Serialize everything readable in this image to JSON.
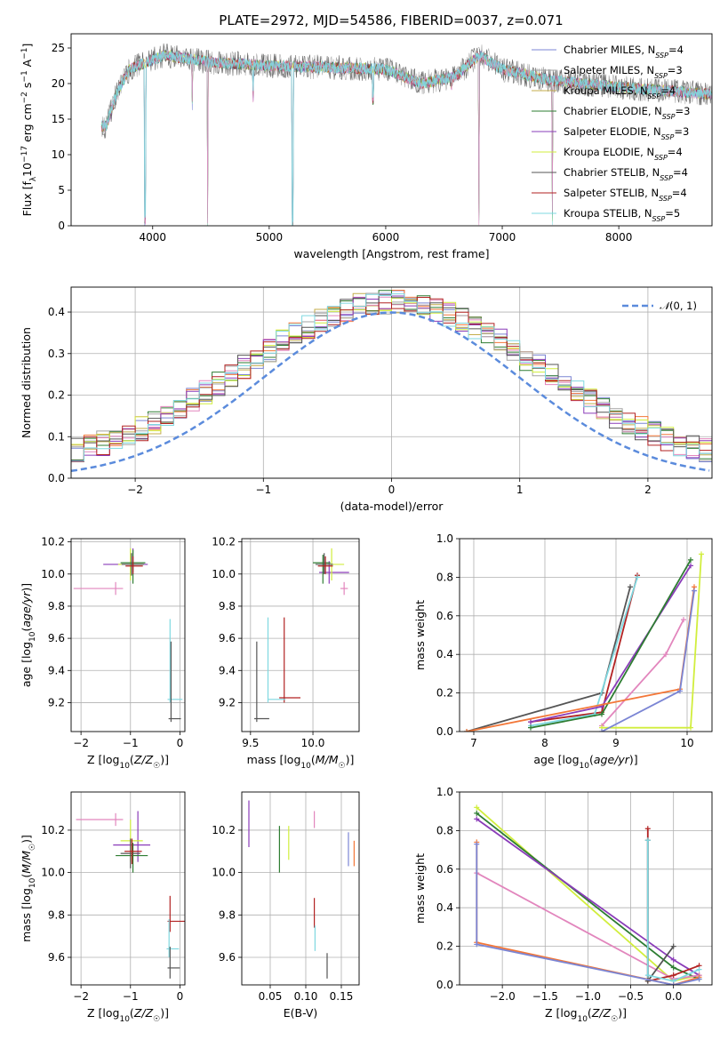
{
  "figure": {
    "title": "PLATE=2972, MJD=54586, FIBERID=0037, z=0.071"
  },
  "colors": {
    "c0": "#7b85d4",
    "c1": "#f37738",
    "c2": "#83c369",
    "c3": "#c4ae4d",
    "c4": "#e286bd",
    "c5": "#a3a3a3",
    "c6": "#8a3cb9",
    "c7": "#d1ee3d",
    "c8": "#555555",
    "c9": "#b22222",
    "c10": "#7fd8e0",
    "c11": "#d98a2e",
    "normal": "#5b8bdc"
  },
  "chart_data": [
    {
      "id": "spectrum",
      "type": "line",
      "xlabel": "wavelength [Angstrom, rest frame]",
      "ylabel": "Flux [f_λ10^-17 erg cm^-2 s^-1 A^-1]",
      "xlim": [
        3300,
        8800
      ],
      "ylim": [
        0,
        27
      ],
      "xticks": [
        4000,
        5000,
        6000,
        7000,
        8000
      ],
      "yticks": [
        0,
        5,
        10,
        15,
        20,
        25
      ],
      "legend": "top-right",
      "legend_entries": [
        {
          "text": "Chabrier MILES, N",
          "sub": "SSP",
          "tail": "=4",
          "color": "#7b85d4"
        },
        {
          "text": "Salpeter MILES, N",
          "sub": "SSP",
          "tail": "=3",
          "color": "#a3a3a3"
        },
        {
          "text": "Kroupa MILES, N",
          "sub": "SSP",
          "tail": "=4",
          "color": "#c4ae4d"
        },
        {
          "text": "Chabrier ELODIE, N",
          "sub": "SSP",
          "tail": "=3",
          "color": "#2e7d32"
        },
        {
          "text": "Salpeter ELODIE, N",
          "sub": "SSP",
          "tail": "=3",
          "color": "#8a3cb9"
        },
        {
          "text": "Kroupa ELODIE, N",
          "sub": "SSP",
          "tail": "=4",
          "color": "#d1ee3d"
        },
        {
          "text": "Chabrier STELIB, N",
          "sub": "SSP",
          "tail": "=4",
          "color": "#555555"
        },
        {
          "text": "Salpeter STELIB, N",
          "sub": "SSP",
          "tail": "=4",
          "color": "#b22222"
        },
        {
          "text": "Kroupa STELIB, N",
          "sub": "SSP",
          "tail": "=5",
          "color": "#7fd8e0"
        }
      ],
      "continuum": [
        [
          3600,
          14
        ],
        [
          3700,
          19
        ],
        [
          3800,
          22
        ],
        [
          3950,
          23
        ],
        [
          4100,
          24
        ],
        [
          4500,
          23
        ],
        [
          5000,
          22.5
        ],
        [
          5500,
          22.3
        ],
        [
          6000,
          22
        ],
        [
          6300,
          20
        ],
        [
          6600,
          21
        ],
        [
          6800,
          24
        ],
        [
          7000,
          22
        ],
        [
          7400,
          20.5
        ],
        [
          8000,
          19.5
        ],
        [
          8800,
          18.5
        ]
      ],
      "dips": [
        [
          3934,
          0
        ],
        [
          4340,
          16
        ],
        [
          4472,
          0
        ],
        [
          4861,
          17
        ],
        [
          5200,
          0
        ],
        [
          5890,
          17
        ],
        [
          6563,
          19
        ],
        [
          6800,
          0
        ],
        [
          7430,
          0
        ]
      ]
    },
    {
      "id": "residuals",
      "type": "line",
      "xlabel": "(data-model)/error",
      "ylabel": "Normed distribution",
      "xlim": [
        -2.5,
        2.5
      ],
      "ylim": [
        0,
        0.46
      ],
      "xticks": [
        -2,
        -1,
        0,
        1,
        2
      ],
      "yticks": [
        0.0,
        0.1,
        0.2,
        0.3,
        0.4
      ],
      "legend": "top-right",
      "legend_label": "N(0, 1)",
      "series": [
        {
          "name": "N(0, 1)",
          "mean": 0,
          "sigma": 1
        }
      ]
    },
    {
      "id": "age-vs-Z",
      "type": "scatter",
      "xlabel": "Z [log10(Z/Z☉)]",
      "ylabel": "age [log10(age/yr)]",
      "xlim": [
        -2.2,
        0.1
      ],
      "ylim": [
        9.02,
        10.22
      ],
      "xticks": [
        -2,
        -1,
        0
      ],
      "yticks": [
        9.2,
        9.4,
        9.6,
        9.8,
        10.0,
        10.2
      ],
      "points": [
        {
          "x": -1.3,
          "y": 9.91,
          "xerr": [
            0.85,
            0.15
          ],
          "yerr": [
            0.04,
            0.04
          ],
          "color": "#e286bd"
        },
        {
          "x": -0.95,
          "y": 10.06,
          "xerr": [
            0.6,
            0.3
          ],
          "yerr": [
            0.05,
            0.1
          ],
          "color": "#8a3cb9"
        },
        {
          "x": -1.0,
          "y": 10.06,
          "xerr": [
            0.25,
            0.25
          ],
          "yerr": [
            0.1,
            0.1
          ],
          "color": "#d1ee3d"
        },
        {
          "x": -0.95,
          "y": 10.07,
          "xerr": [
            0.25,
            0.25
          ],
          "yerr": [
            0.13,
            0.08
          ],
          "color": "#2e7d32"
        },
        {
          "x": -0.98,
          "y": 10.06,
          "xerr": [
            0.2,
            0.25
          ],
          "yerr": [
            0.07,
            0.07
          ],
          "color": "#555555"
        },
        {
          "x": -0.95,
          "y": 10.05,
          "xerr": [
            0.15,
            0.2
          ],
          "yerr": [
            0.05,
            0.06
          ],
          "color": "#b22222"
        },
        {
          "x": -0.2,
          "y": 9.22,
          "xerr": [
            0.05,
            0.25
          ],
          "yerr": [
            0.02,
            0.5
          ],
          "color": "#7fd8e0"
        },
        {
          "x": -0.18,
          "y": 9.1,
          "xerr": [
            0.05,
            0.2
          ],
          "yerr": [
            0.02,
            0.48
          ],
          "color": "#555555"
        }
      ]
    },
    {
      "id": "age-vs-mass",
      "type": "scatter",
      "xlabel": "mass [log10(M/M☉)]",
      "ylabel": "",
      "xlim": [
        9.43,
        10.37
      ],
      "ylim": [
        9.02,
        10.22
      ],
      "xticks": [
        9.5,
        10.0
      ],
      "yticks": [
        9.2,
        9.4,
        9.6,
        9.8,
        10.0,
        10.2
      ],
      "points": [
        {
          "x": 10.25,
          "y": 9.91,
          "xerr": [
            0.03,
            0.03
          ],
          "yerr": [
            0.04,
            0.04
          ],
          "color": "#e286bd"
        },
        {
          "x": 10.13,
          "y": 10.01,
          "xerr": [
            0.08,
            0.16
          ],
          "yerr": [
            0.07,
            0.07
          ],
          "color": "#8a3cb9"
        },
        {
          "x": 10.15,
          "y": 10.06,
          "xerr": [
            0.1,
            0.1
          ],
          "yerr": [
            0.1,
            0.1
          ],
          "color": "#d1ee3d"
        },
        {
          "x": 10.08,
          "y": 10.07,
          "xerr": [
            0.08,
            0.06
          ],
          "yerr": [
            0.13,
            0.05
          ],
          "color": "#2e7d32"
        },
        {
          "x": 10.09,
          "y": 10.06,
          "xerr": [
            0.07,
            0.07
          ],
          "yerr": [
            0.06,
            0.07
          ],
          "color": "#555555"
        },
        {
          "x": 10.1,
          "y": 10.05,
          "xerr": [
            0.06,
            0.06
          ],
          "yerr": [
            0.05,
            0.06
          ],
          "color": "#b22222"
        },
        {
          "x": 9.77,
          "y": 9.23,
          "xerr": [
            0.04,
            0.13
          ],
          "yerr": [
            0.03,
            0.5
          ],
          "color": "#b22222"
        },
        {
          "x": 9.64,
          "y": 9.22,
          "xerr": [
            0.0,
            0.14
          ],
          "yerr": [
            0.02,
            0.51
          ],
          "color": "#7fd8e0"
        },
        {
          "x": 9.55,
          "y": 9.1,
          "xerr": [
            0.02,
            0.1
          ],
          "yerr": [
            0.02,
            0.48
          ],
          "color": "#555555"
        }
      ]
    },
    {
      "id": "weight-vs-age",
      "type": "line",
      "xlabel": "age [log10(age/yr)]",
      "ylabel": "mass weight",
      "xlim": [
        6.8,
        10.35
      ],
      "ylim": [
        0,
        1.0
      ],
      "xticks": [
        7,
        8,
        9,
        10
      ],
      "yticks": [
        0.0,
        0.2,
        0.4,
        0.6,
        0.8,
        1.0
      ],
      "series": [
        {
          "x": [
            7.8,
            8.8,
            9.3
          ],
          "y": [
            0.05,
            0.1,
            0.81
          ],
          "color": "#b22222"
        },
        {
          "x": [
            6.9,
            8.8,
            9.2
          ],
          "y": [
            0.0,
            0.2,
            0.75
          ],
          "color": "#555555"
        },
        {
          "x": [
            7.8,
            8.7,
            9.3
          ],
          "y": [
            0.03,
            0.09,
            0.8
          ],
          "color": "#7fd8e0"
        },
        {
          "x": [
            7.8,
            8.8,
            10.05
          ],
          "y": [
            0.05,
            0.13,
            0.86
          ],
          "color": "#8a3cb9"
        },
        {
          "x": [
            7.8,
            8.8,
            10.05
          ],
          "y": [
            0.02,
            0.09,
            0.89
          ],
          "color": "#2e7d32"
        },
        {
          "x": [
            8.8,
            9.7,
            9.95
          ],
          "y": [
            0.03,
            0.4,
            0.58
          ],
          "color": "#e286bd"
        },
        {
          "x": [
            6.9,
            9.9,
            10.1
          ],
          "y": [
            0.0,
            0.22,
            0.75
          ],
          "color": "#f37738"
        },
        {
          "x": [
            8.8,
            10.05,
            10.2
          ],
          "y": [
            0.02,
            0.02,
            0.92
          ],
          "color": "#d1ee3d"
        },
        {
          "x": [
            8.8,
            9.9,
            10.1
          ],
          "y": [
            0.0,
            0.21,
            0.73
          ],
          "color": "#7b85d4"
        }
      ]
    },
    {
      "id": "mass-vs-Z",
      "type": "scatter",
      "xlabel": "Z [log10(Z/Z☉)]",
      "ylabel": "mass [log10(M/M☉)]",
      "xlim": [
        -2.2,
        0.1
      ],
      "ylim": [
        9.47,
        10.38
      ],
      "xticks": [
        -2,
        -1,
        0
      ],
      "yticks": [
        9.6,
        9.8,
        10.0,
        10.2
      ],
      "points": [
        {
          "x": -1.3,
          "y": 10.25,
          "xerr": [
            0.8,
            0.15
          ],
          "yerr": [
            0.03,
            0.03
          ],
          "color": "#e286bd"
        },
        {
          "x": -0.85,
          "y": 10.13,
          "xerr": [
            0.5,
            0.25
          ],
          "yerr": [
            0.08,
            0.16
          ],
          "color": "#8a3cb9"
        },
        {
          "x": -1.0,
          "y": 10.15,
          "xerr": [
            0.2,
            0.25
          ],
          "yerr": [
            0.1,
            0.1
          ],
          "color": "#d1ee3d"
        },
        {
          "x": -0.95,
          "y": 10.08,
          "xerr": [
            0.35,
            0.3
          ],
          "yerr": [
            0.08,
            0.06
          ],
          "color": "#2e7d32"
        },
        {
          "x": -1.0,
          "y": 10.09,
          "xerr": [
            0.2,
            0.2
          ],
          "yerr": [
            0.07,
            0.07
          ],
          "color": "#555555"
        },
        {
          "x": -0.97,
          "y": 10.1,
          "xerr": [
            0.15,
            0.2
          ],
          "yerr": [
            0.06,
            0.06
          ],
          "color": "#b22222"
        },
        {
          "x": -0.2,
          "y": 9.77,
          "xerr": [
            0.05,
            0.3
          ],
          "yerr": [
            0.05,
            0.12
          ],
          "color": "#b22222"
        },
        {
          "x": -0.22,
          "y": 9.64,
          "xerr": [
            0.05,
            0.2
          ],
          "yerr": [
            0.04,
            0.14
          ],
          "color": "#7fd8e0"
        },
        {
          "x": -0.2,
          "y": 9.55,
          "xerr": [
            0.05,
            0.2
          ],
          "yerr": [
            0.05,
            0.1
          ],
          "color": "#555555"
        }
      ]
    },
    {
      "id": "mass-vs-EBV",
      "type": "scatter",
      "xlabel": "E(B-V)",
      "ylabel": "",
      "xlim": [
        0.01,
        0.175
      ],
      "ylim": [
        9.47,
        10.38
      ],
      "xticks": [
        0.05,
        0.1,
        0.15
      ],
      "yticks": [
        9.6,
        9.8,
        10.0,
        10.2
      ],
      "points": [
        {
          "x": 0.02,
          "y": 10.23,
          "xerr": [
            0,
            0
          ],
          "yerr": [
            0.11,
            0.11
          ],
          "color": "#8a3cb9"
        },
        {
          "x": 0.063,
          "y": 10.11,
          "xerr": [
            0,
            0
          ],
          "yerr": [
            0.11,
            0.11
          ],
          "color": "#2e7d32"
        },
        {
          "x": 0.076,
          "y": 10.14,
          "xerr": [
            0,
            0
          ],
          "yerr": [
            0.08,
            0.08
          ],
          "color": "#d1ee3d"
        },
        {
          "x": 0.112,
          "y": 10.25,
          "xerr": [
            0,
            0
          ],
          "yerr": [
            0.04,
            0.04
          ],
          "color": "#e286bd"
        },
        {
          "x": 0.112,
          "y": 9.81,
          "xerr": [
            0,
            0
          ],
          "yerr": [
            0.07,
            0.07
          ],
          "color": "#b22222"
        },
        {
          "x": 0.113,
          "y": 9.69,
          "xerr": [
            0,
            0
          ],
          "yerr": [
            0.06,
            0.06
          ],
          "color": "#7fd8e0"
        },
        {
          "x": 0.13,
          "y": 9.56,
          "xerr": [
            0,
            0
          ],
          "yerr": [
            0.06,
            0.06
          ],
          "color": "#555555"
        },
        {
          "x": 0.16,
          "y": 10.11,
          "xerr": [
            0,
            0
          ],
          "yerr": [
            0.08,
            0.08
          ],
          "color": "#7b85d4"
        },
        {
          "x": 0.168,
          "y": 10.09,
          "xerr": [
            0,
            0
          ],
          "yerr": [
            0.06,
            0.06
          ],
          "color": "#f37738"
        }
      ]
    },
    {
      "id": "weight-vs-Z",
      "type": "line",
      "xlabel": "Z [log10(Z/Z☉)]",
      "ylabel": "mass weight",
      "xlim": [
        -2.5,
        0.45
      ],
      "ylim": [
        0,
        1.0
      ],
      "xticks": [
        -2.0,
        -1.5,
        -1.0,
        -0.5,
        0.0
      ],
      "yticks": [
        0.0,
        0.2,
        0.4,
        0.6,
        0.8,
        1.0
      ],
      "series": [
        {
          "x": [
            -2.3,
            0.0,
            0.3
          ],
          "y": [
            0.92,
            0.02,
            0.05
          ],
          "color": "#d1ee3d"
        },
        {
          "x": [
            -2.3,
            0.0,
            0.3
          ],
          "y": [
            0.89,
            0.09,
            0.03
          ],
          "color": "#2e7d32"
        },
        {
          "x": [
            -2.3,
            0.0,
            0.3
          ],
          "y": [
            0.86,
            0.13,
            0.05
          ],
          "color": "#8a3cb9"
        },
        {
          "x": [
            -2.3,
            0.0,
            0.3
          ],
          "y": [
            0.58,
            0.03,
            0.05
          ],
          "color": "#e286bd"
        },
        {
          "x": [
            -0.3,
            -0.3,
            0.0,
            0.3
          ],
          "y": [
            0.81,
            0.02,
            0.05,
            0.1
          ],
          "color": "#b22222"
        },
        {
          "x": [
            -0.3,
            -0.3,
            0.0
          ],
          "y": [
            0.75,
            0.02,
            0.2
          ],
          "color": "#555555"
        },
        {
          "x": [
            -0.3,
            -0.3,
            0.0,
            0.3
          ],
          "y": [
            0.75,
            0.05,
            0.02,
            0.08
          ],
          "color": "#7fd8e0"
        },
        {
          "x": [
            -2.3,
            -2.3,
            0.0,
            0.3
          ],
          "y": [
            0.74,
            0.22,
            0.0,
            0.04
          ],
          "color": "#f37738"
        },
        {
          "x": [
            -2.3,
            -2.3,
            0.0,
            0.3
          ],
          "y": [
            0.73,
            0.21,
            0.0,
            0.03
          ],
          "color": "#7b85d4"
        }
      ]
    }
  ]
}
